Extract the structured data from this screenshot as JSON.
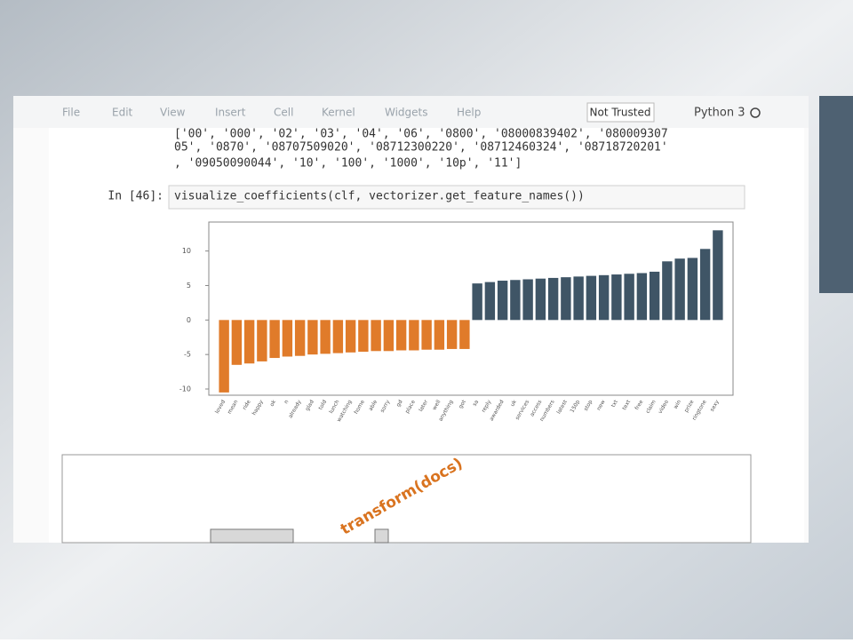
{
  "menu": [
    "File",
    "Edit",
    "View",
    "Insert",
    "Cell",
    "Kernel",
    "Widgets",
    "Help"
  ],
  "trust": "Not Trusted",
  "kernel": "Python 3",
  "output_lines": [
    "['00', '000', '02', '03', '04', '06', '0800', '08000839402', '080009307",
    "05', '0870', '08707509020', '08712300220', '08712460324', '08718720201'",
    ", '09050090044', '10', '100', '1000', '10p', '11']"
  ],
  "prompt": "In [46]:",
  "code": "visualize_coefficients(clf, vectorizer.get_feature_names())",
  "diagram_label": "transform(docs)",
  "chart_data": {
    "type": "bar",
    "categories": [
      "loved",
      "mean",
      "ride",
      "happy",
      "ok",
      "n",
      "already",
      "glad",
      "told",
      "lunch",
      "watching",
      "home",
      "able",
      "sorry",
      "gd",
      "place",
      "later",
      "well",
      "anything",
      "got",
      "sa",
      "reply",
      "awarded",
      "uk",
      "services",
      "access",
      "numbers",
      "latest",
      "150p",
      "stop",
      "new",
      "txt",
      "text",
      "free",
      "claim",
      "video",
      "win",
      "prize",
      "ringtone",
      "sexy"
    ],
    "values": [
      -10.5,
      -6.5,
      -6.3,
      -6.0,
      -5.5,
      -5.3,
      -5.2,
      -5.0,
      -4.9,
      -4.8,
      -4.7,
      -4.6,
      -4.5,
      -4.5,
      -4.4,
      -4.4,
      -4.3,
      -4.3,
      -4.2,
      -4.2,
      5.3,
      5.5,
      5.7,
      5.8,
      5.9,
      6.0,
      6.1,
      6.2,
      6.3,
      6.4,
      6.5,
      6.6,
      6.7,
      6.8,
      7.0,
      8.5,
      8.9,
      9.0,
      10.3,
      13.0
    ],
    "negative_color": "#e07b2a",
    "positive_color": "#3f5566",
    "ylim": [
      -10.9,
      14.2
    ],
    "yticks": [
      -10,
      -5,
      0,
      5,
      10
    ]
  }
}
